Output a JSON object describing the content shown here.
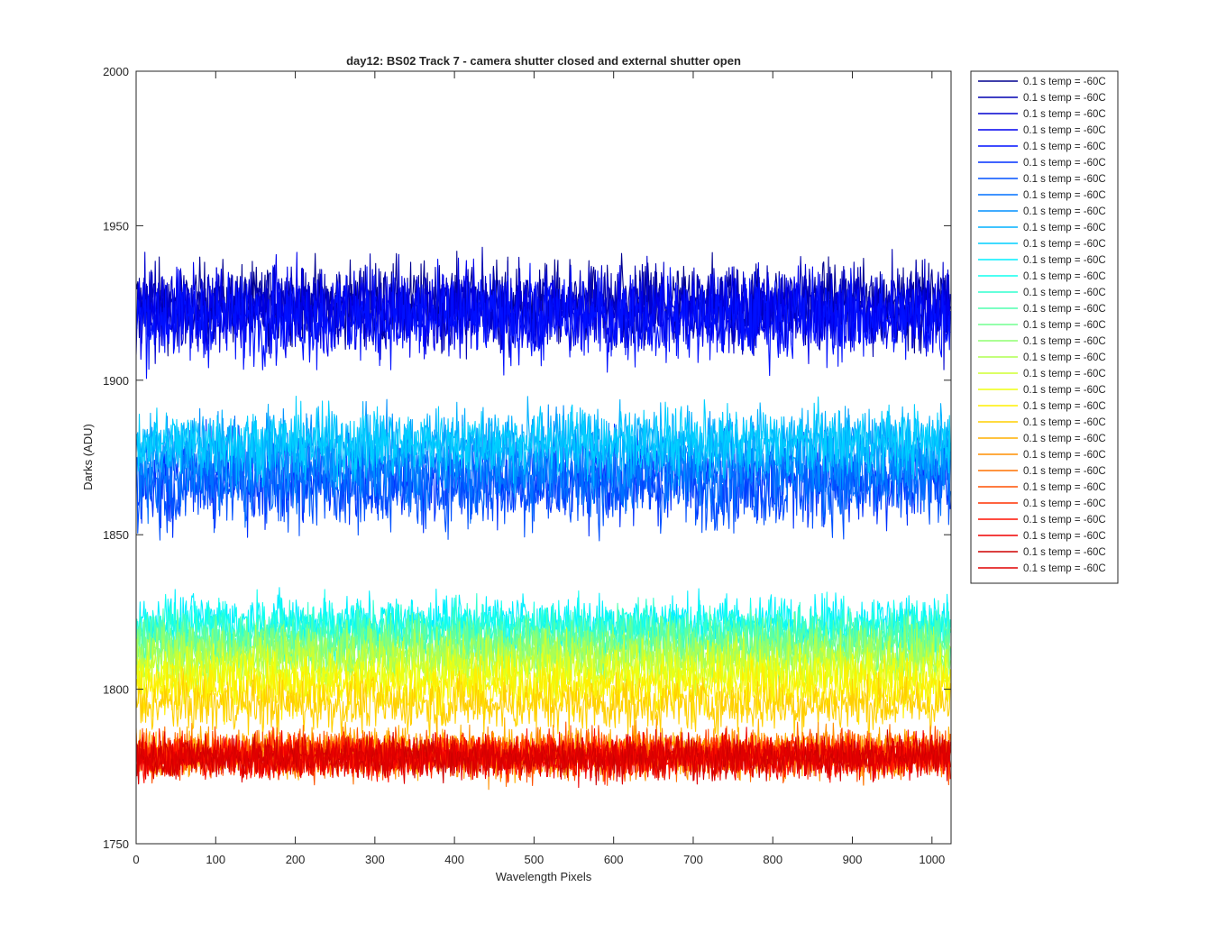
{
  "chart_data": {
    "type": "line",
    "title": "day12: BS02  Track 7 - camera shutter closed and external shutter open",
    "xlabel": "Wavelength Pixels",
    "ylabel": "Darks (ADU)",
    "xlim": [
      0,
      1024
    ],
    "ylim": [
      1750,
      2000
    ],
    "xticks": [
      0,
      100,
      200,
      300,
      400,
      500,
      600,
      700,
      800,
      900,
      1000
    ],
    "yticks": [
      1750,
      1800,
      1850,
      1900,
      1950,
      2000
    ],
    "grid": false,
    "legend_position": "outside-top-right",
    "x_points": 1024,
    "series": [
      {
        "name": "0.1 s temp = -60C",
        "color": "#00008f",
        "center": 1925,
        "noise": 12
      },
      {
        "name": "0.1 s temp = -60C",
        "color": "#0000b0",
        "center": 1924,
        "noise": 12
      },
      {
        "name": "0.1 s temp = -60C",
        "color": "#0000cf",
        "center": 1923,
        "noise": 12
      },
      {
        "name": "0.1 s temp = -60C",
        "color": "#0000ef",
        "center": 1922,
        "noise": 12
      },
      {
        "name": "0.1 s temp = -60C",
        "color": "#0010ff",
        "center": 1920,
        "noise": 13
      },
      {
        "name": "0.1 s temp = -60C",
        "color": "#0030ff",
        "center": 1868,
        "noise": 13
      },
      {
        "name": "0.1 s temp = -60C",
        "color": "#0050ff",
        "center": 1866,
        "noise": 13
      },
      {
        "name": "0.1 s temp = -60C",
        "color": "#0070ff",
        "center": 1870,
        "noise": 12
      },
      {
        "name": "0.1 s temp = -60C",
        "color": "#0090ff",
        "center": 1876,
        "noise": 11
      },
      {
        "name": "0.1 s temp = -60C",
        "color": "#00b0ff",
        "center": 1880,
        "noise": 10
      },
      {
        "name": "0.1 s temp = -60C",
        "color": "#00cfff",
        "center": 1880,
        "noise": 10
      },
      {
        "name": "0.1 s temp = -60C",
        "color": "#00efff",
        "center": 1822,
        "noise": 8
      },
      {
        "name": "0.1 s temp = -60C",
        "color": "#10ffef",
        "center": 1820,
        "noise": 8
      },
      {
        "name": "0.1 s temp = -60C",
        "color": "#30ffcf",
        "center": 1818,
        "noise": 8
      },
      {
        "name": "0.1 s temp = -60C",
        "color": "#50ffaf",
        "center": 1816,
        "noise": 8
      },
      {
        "name": "0.1 s temp = -60C",
        "color": "#70ff8f",
        "center": 1814,
        "noise": 8
      },
      {
        "name": "0.1 s temp = -60C",
        "color": "#8fff70",
        "center": 1812,
        "noise": 8
      },
      {
        "name": "0.1 s temp = -60C",
        "color": "#afff50",
        "center": 1810,
        "noise": 8
      },
      {
        "name": "0.1 s temp = -60C",
        "color": "#cfff30",
        "center": 1807,
        "noise": 8
      },
      {
        "name": "0.1 s temp = -60C",
        "color": "#efff10",
        "center": 1804,
        "noise": 8
      },
      {
        "name": "0.1 s temp = -60C",
        "color": "#ffef00",
        "center": 1800,
        "noise": 8
      },
      {
        "name": "0.1 s temp = -60C",
        "color": "#ffcf00",
        "center": 1795,
        "noise": 8
      },
      {
        "name": "0.1 s temp = -60C",
        "color": "#ffaf00",
        "center": 1780,
        "noise": 7
      },
      {
        "name": "0.1 s temp = -60C",
        "color": "#ff8f00",
        "center": 1779,
        "noise": 7
      },
      {
        "name": "0.1 s temp = -60C",
        "color": "#ff7000",
        "center": 1779,
        "noise": 7
      },
      {
        "name": "0.1 s temp = -60C",
        "color": "#ff5000",
        "center": 1779,
        "noise": 7
      },
      {
        "name": "0.1 s temp = -60C",
        "color": "#ff3000",
        "center": 1779,
        "noise": 6
      },
      {
        "name": "0.1 s temp = -60C",
        "color": "#ff1000",
        "center": 1778,
        "noise": 6
      },
      {
        "name": "0.1 s temp = -60C",
        "color": "#ef0000",
        "center": 1778,
        "noise": 6
      },
      {
        "name": "0.1 s temp = -60C",
        "color": "#cf0000",
        "center": 1778,
        "noise": 6
      },
      {
        "name": "0.1 s temp = -60C",
        "color": "#e00000",
        "center": 1778,
        "noise": 6
      }
    ]
  }
}
